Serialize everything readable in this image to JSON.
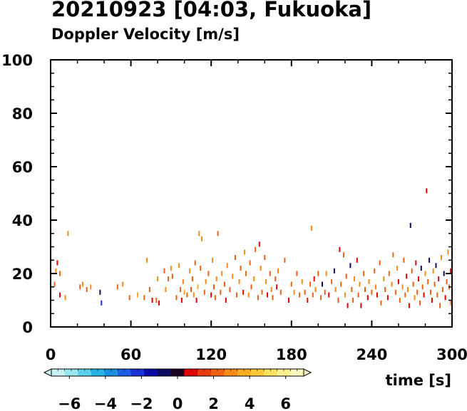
{
  "title": "20210923 [04:03, Fukuoka]",
  "subtitle": "Doppler Velocity [m/s]",
  "chart_data": {
    "type": "scatter",
    "title": "20210923 [04:03, Fukuoka]",
    "subtitle": "Doppler Velocity [m/s]",
    "xlabel": "time [s]",
    "ylabel": "",
    "xlim": [
      0,
      300
    ],
    "ylim": [
      0,
      100
    ],
    "xticks": [
      0,
      60,
      120,
      180,
      240,
      300
    ],
    "yticks": [
      0,
      20,
      40,
      60,
      80,
      100
    ],
    "grid": false,
    "colorbar": {
      "range": [
        -7,
        7
      ],
      "ticks": [
        -6,
        -4,
        -2,
        0,
        2,
        4,
        6
      ],
      "tick_labels": [
        "−6",
        "−4",
        "−2",
        "0",
        "2",
        "4",
        "6"
      ],
      "colors": [
        "#c8f0f0",
        "#9ae6ee",
        "#5cd2ea",
        "#25b4e4",
        "#1a8fe0",
        "#1e5ee6",
        "#1a30d8",
        "#0a0aa8",
        "#0a0a60",
        "#1a0020",
        "#e00000",
        "#e83a10",
        "#f06010",
        "#f68a14",
        "#faac20",
        "#fcc836",
        "#fde260",
        "#fef08e",
        "#fff8c0"
      ]
    },
    "points": [
      {
        "t": 3,
        "h": 16,
        "v": 2
      },
      {
        "t": 4,
        "h": 21,
        "v": 3
      },
      {
        "t": 5,
        "h": 24,
        "v": 1
      },
      {
        "t": 7,
        "h": 20,
        "v": 2
      },
      {
        "t": 7,
        "h": 12,
        "v": 1
      },
      {
        "t": 11,
        "h": 11,
        "v": 3
      },
      {
        "t": 13,
        "h": 35,
        "v": 3
      },
      {
        "t": 22,
        "h": 15,
        "v": 2
      },
      {
        "t": 24,
        "h": 16,
        "v": 3
      },
      {
        "t": 27,
        "h": 14,
        "v": 2
      },
      {
        "t": 30,
        "h": 15,
        "v": 3
      },
      {
        "t": 37,
        "h": 13,
        "v": -1
      },
      {
        "t": 38,
        "h": 9,
        "v": -2
      },
      {
        "t": 50,
        "h": 15,
        "v": 2
      },
      {
        "t": 54,
        "h": 16,
        "v": 3
      },
      {
        "t": 59,
        "h": 11,
        "v": 2
      },
      {
        "t": 65,
        "h": 12,
        "v": 4
      },
      {
        "t": 70,
        "h": 11,
        "v": 2
      },
      {
        "t": 72,
        "h": 25,
        "v": 3
      },
      {
        "t": 74,
        "h": 14,
        "v": 2
      },
      {
        "t": 76,
        "h": 10,
        "v": 1
      },
      {
        "t": 79,
        "h": 10,
        "v": 2
      },
      {
        "t": 80,
        "h": 18,
        "v": 3
      },
      {
        "t": 81,
        "h": 9,
        "v": 1
      },
      {
        "t": 85,
        "h": 21,
        "v": 2
      },
      {
        "t": 86,
        "h": 14,
        "v": 3
      },
      {
        "t": 88,
        "h": 18,
        "v": 2
      },
      {
        "t": 90,
        "h": 22,
        "v": 3
      },
      {
        "t": 91,
        "h": 19,
        "v": 2
      },
      {
        "t": 94,
        "h": 11,
        "v": 2
      },
      {
        "t": 96,
        "h": 23,
        "v": 3
      },
      {
        "t": 97,
        "h": 14,
        "v": 2
      },
      {
        "t": 98,
        "h": 10,
        "v": 1
      },
      {
        "t": 99,
        "h": 17,
        "v": 3
      },
      {
        "t": 100,
        "h": 13,
        "v": 4
      },
      {
        "t": 102,
        "h": 12,
        "v": 2
      },
      {
        "t": 104,
        "h": 21,
        "v": 3
      },
      {
        "t": 105,
        "h": 14,
        "v": 2
      },
      {
        "t": 106,
        "h": 18,
        "v": 2
      },
      {
        "t": 107,
        "h": 12,
        "v": 3
      },
      {
        "t": 108,
        "h": 24,
        "v": 2
      },
      {
        "t": 109,
        "h": 10,
        "v": 1
      },
      {
        "t": 110,
        "h": 15,
        "v": 4
      },
      {
        "t": 111,
        "h": 35,
        "v": 3
      },
      {
        "t": 112,
        "h": 22,
        "v": 2
      },
      {
        "t": 113,
        "h": 33,
        "v": 3
      },
      {
        "t": 115,
        "h": 13,
        "v": 2
      },
      {
        "t": 116,
        "h": 17,
        "v": 3
      },
      {
        "t": 118,
        "h": 20,
        "v": 2
      },
      {
        "t": 120,
        "h": 12,
        "v": 1
      },
      {
        "t": 121,
        "h": 25,
        "v": 3
      },
      {
        "t": 122,
        "h": 15,
        "v": 2
      },
      {
        "t": 123,
        "h": 11,
        "v": 2
      },
      {
        "t": 124,
        "h": 18,
        "v": 3
      },
      {
        "t": 125,
        "h": 35,
        "v": 2
      },
      {
        "t": 127,
        "h": 13,
        "v": 2
      },
      {
        "t": 128,
        "h": 20,
        "v": 3
      },
      {
        "t": 130,
        "h": 16,
        "v": 2
      },
      {
        "t": 131,
        "h": 10,
        "v": 1
      },
      {
        "t": 132,
        "h": 23,
        "v": 3
      },
      {
        "t": 134,
        "h": 14,
        "v": 2
      },
      {
        "t": 136,
        "h": 19,
        "v": 3
      },
      {
        "t": 138,
        "h": 26,
        "v": 2
      },
      {
        "t": 139,
        "h": 12,
        "v": 2
      },
      {
        "t": 141,
        "h": 17,
        "v": 3
      },
      {
        "t": 142,
        "h": 22,
        "v": 2
      },
      {
        "t": 144,
        "h": 13,
        "v": 1
      },
      {
        "t": 145,
        "h": 28,
        "v": 3
      },
      {
        "t": 146,
        "h": 20,
        "v": 2
      },
      {
        "t": 148,
        "h": 12,
        "v": 3
      },
      {
        "t": 149,
        "h": 24,
        "v": 2
      },
      {
        "t": 150,
        "h": 15,
        "v": 2
      },
      {
        "t": 152,
        "h": 18,
        "v": 3
      },
      {
        "t": 153,
        "h": 29,
        "v": 2
      },
      {
        "t": 155,
        "h": 11,
        "v": 2
      },
      {
        "t": 156,
        "h": 31,
        "v": 1
      },
      {
        "t": 157,
        "h": 22,
        "v": 3
      },
      {
        "t": 158,
        "h": 13,
        "v": 2
      },
      {
        "t": 160,
        "h": 26,
        "v": 2
      },
      {
        "t": 161,
        "h": 17,
        "v": 3
      },
      {
        "t": 162,
        "h": 12,
        "v": 1
      },
      {
        "t": 164,
        "h": 20,
        "v": 2
      },
      {
        "t": 165,
        "h": 14,
        "v": 3
      },
      {
        "t": 166,
        "h": 11,
        "v": 2
      },
      {
        "t": 168,
        "h": 18,
        "v": 2
      },
      {
        "t": 169,
        "h": 15,
        "v": 1
      },
      {
        "t": 170,
        "h": 21,
        "v": 3
      },
      {
        "t": 172,
        "h": 13,
        "v": 2
      },
      {
        "t": 175,
        "h": 25,
        "v": 2
      },
      {
        "t": 178,
        "h": 10,
        "v": 1
      },
      {
        "t": 180,
        "h": 16,
        "v": 2
      },
      {
        "t": 182,
        "h": 13,
        "v": 3
      },
      {
        "t": 184,
        "h": 20,
        "v": 2
      },
      {
        "t": 186,
        "h": 12,
        "v": 2
      },
      {
        "t": 188,
        "h": 17,
        "v": 3
      },
      {
        "t": 190,
        "h": 13,
        "v": 2
      },
      {
        "t": 192,
        "h": 10,
        "v": 1
      },
      {
        "t": 194,
        "h": 16,
        "v": 2
      },
      {
        "t": 195,
        "h": 37,
        "v": 3
      },
      {
        "t": 196,
        "h": 12,
        "v": 2
      },
      {
        "t": 197,
        "h": 18,
        "v": 1
      },
      {
        "t": 198,
        "h": 14,
        "v": 3
      },
      {
        "t": 200,
        "h": 20,
        "v": 2
      },
      {
        "t": 202,
        "h": 11,
        "v": 2
      },
      {
        "t": 203,
        "h": 16,
        "v": -1
      },
      {
        "t": 205,
        "h": 13,
        "v": 2
      },
      {
        "t": 206,
        "h": 20,
        "v": 3
      },
      {
        "t": 208,
        "h": 12,
        "v": 1
      },
      {
        "t": 210,
        "h": 17,
        "v": 2
      },
      {
        "t": 212,
        "h": 21,
        "v": -1
      },
      {
        "t": 213,
        "h": 14,
        "v": 3
      },
      {
        "t": 215,
        "h": 10,
        "v": 2
      },
      {
        "t": 216,
        "h": 29,
        "v": 1
      },
      {
        "t": 217,
        "h": 16,
        "v": 2
      },
      {
        "t": 219,
        "h": 27,
        "v": 2
      },
      {
        "t": 220,
        "h": 12,
        "v": 3
      },
      {
        "t": 221,
        "h": 19,
        "v": 2
      },
      {
        "t": 222,
        "h": 8,
        "v": 1
      },
      {
        "t": 224,
        "h": 23,
        "v": -1
      },
      {
        "t": 225,
        "h": 14,
        "v": 2
      },
      {
        "t": 226,
        "h": 10,
        "v": 2
      },
      {
        "t": 227,
        "h": 18,
        "v": 3
      },
      {
        "t": 229,
        "h": 25,
        "v": 1
      },
      {
        "t": 230,
        "h": 12,
        "v": 2
      },
      {
        "t": 231,
        "h": 16,
        "v": 3
      },
      {
        "t": 232,
        "h": 8,
        "v": 1
      },
      {
        "t": 234,
        "h": 20,
        "v": 2
      },
      {
        "t": 235,
        "h": 14,
        "v": 2
      },
      {
        "t": 237,
        "h": 11,
        "v": 1
      },
      {
        "t": 238,
        "h": 17,
        "v": 3
      },
      {
        "t": 240,
        "h": 13,
        "v": 2
      },
      {
        "t": 242,
        "h": 21,
        "v": 2
      },
      {
        "t": 243,
        "h": 15,
        "v": 3
      },
      {
        "t": 244,
        "h": 12,
        "v": 1
      },
      {
        "t": 246,
        "h": 24,
        "v": 2
      },
      {
        "t": 247,
        "h": 9,
        "v": 2
      },
      {
        "t": 249,
        "h": 18,
        "v": 3
      },
      {
        "t": 250,
        "h": 14,
        "v": 2
      },
      {
        "t": 252,
        "h": 11,
        "v": 1
      },
      {
        "t": 253,
        "h": 20,
        "v": 2
      },
      {
        "t": 255,
        "h": 16,
        "v": 3
      },
      {
        "t": 256,
        "h": 27,
        "v": 2
      },
      {
        "t": 258,
        "h": 13,
        "v": 2
      },
      {
        "t": 259,
        "h": 22,
        "v": 3
      },
      {
        "t": 260,
        "h": 17,
        "v": 1
      },
      {
        "t": 261,
        "h": 10,
        "v": 2
      },
      {
        "t": 263,
        "h": 15,
        "v": 3
      },
      {
        "t": 264,
        "h": 25,
        "v": 2
      },
      {
        "t": 265,
        "h": 12,
        "v": 2
      },
      {
        "t": 266,
        "h": 19,
        "v": 1
      },
      {
        "t": 267,
        "h": 14,
        "v": 3
      },
      {
        "t": 268,
        "h": 8,
        "v": 1
      },
      {
        "t": 269,
        "h": 38,
        "v": -1
      },
      {
        "t": 270,
        "h": 21,
        "v": 2
      },
      {
        "t": 271,
        "h": 16,
        "v": 2
      },
      {
        "t": 272,
        "h": 11,
        "v": 3
      },
      {
        "t": 273,
        "h": 24,
        "v": 1
      },
      {
        "t": 274,
        "h": 13,
        "v": 2
      },
      {
        "t": 275,
        "h": 18,
        "v": 1
      },
      {
        "t": 276,
        "h": 9,
        "v": 2
      },
      {
        "t": 277,
        "h": 22,
        "v": -1
      },
      {
        "t": 278,
        "h": 15,
        "v": 2
      },
      {
        "t": 279,
        "h": 12,
        "v": 1
      },
      {
        "t": 280,
        "h": 20,
        "v": 3
      },
      {
        "t": 281,
        "h": 51,
        "v": 1
      },
      {
        "t": 282,
        "h": 17,
        "v": 2
      },
      {
        "t": 283,
        "h": 25,
        "v": -1
      },
      {
        "t": 284,
        "h": 13,
        "v": 2
      },
      {
        "t": 285,
        "h": 10,
        "v": 1
      },
      {
        "t": 286,
        "h": 21,
        "v": 3
      },
      {
        "t": 287,
        "h": 16,
        "v": 2
      },
      {
        "t": 288,
        "h": 23,
        "v": -1
      },
      {
        "t": 289,
        "h": 12,
        "v": 2
      },
      {
        "t": 290,
        "h": 18,
        "v": 1
      },
      {
        "t": 291,
        "h": 8,
        "v": 2
      },
      {
        "t": 292,
        "h": 26,
        "v": 3
      },
      {
        "t": 293,
        "h": 14,
        "v": 2
      },
      {
        "t": 294,
        "h": 20,
        "v": -1
      },
      {
        "t": 295,
        "h": 11,
        "v": 1
      },
      {
        "t": 296,
        "h": 17,
        "v": 2
      },
      {
        "t": 297,
        "h": 28,
        "v": 3
      },
      {
        "t": 298,
        "h": 15,
        "v": 2
      },
      {
        "t": 299,
        "h": 21,
        "v": 1
      },
      {
        "t": 299,
        "h": 9,
        "v": 3
      }
    ]
  }
}
